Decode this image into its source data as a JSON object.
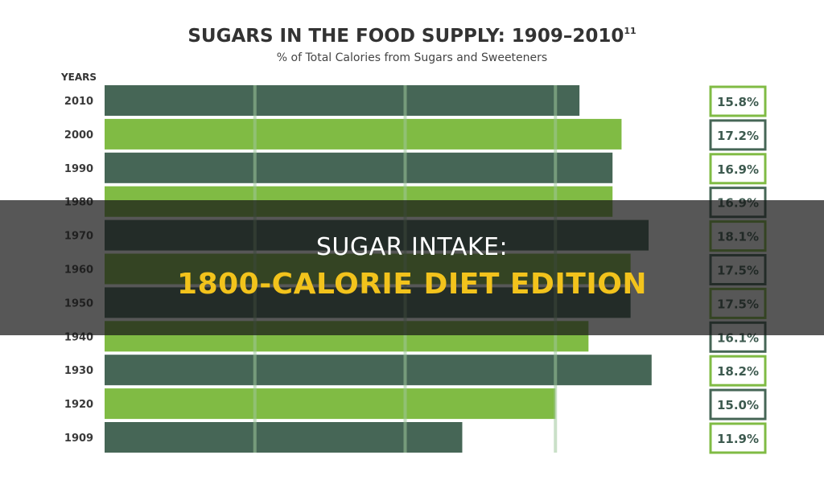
{
  "chart_data": {
    "type": "bar",
    "orientation": "horizontal",
    "title": "SUGARS IN THE FOOD SUPPLY: 1909–2010",
    "title_superscript": "11",
    "subtitle": "% of Total Calories from Sugars and Sweeteners",
    "ylabel": "YEARS",
    "categories": [
      "2010",
      "2000",
      "1990",
      "1980",
      "1970",
      "1960",
      "1950",
      "1940",
      "1930",
      "1920",
      "1909"
    ],
    "values": [
      15.8,
      17.2,
      16.9,
      16.9,
      18.1,
      17.5,
      17.5,
      16.1,
      18.2,
      15.0,
      11.9
    ],
    "value_labels": [
      "15.8%",
      "17.2%",
      "16.9%",
      "16.9%",
      "18.1%",
      "17.5%",
      "17.5%",
      "16.1%",
      "18.2%",
      "15.0%",
      "11.9%"
    ],
    "xlim": [
      0,
      20
    ],
    "gridlines_at": [
      5,
      10,
      15
    ],
    "colors": {
      "dark": "#466656",
      "light": "#80bb44",
      "grid": "#9ec79a"
    }
  },
  "headline": {
    "line1": "SUGAR INTAKE:",
    "line2": "1800-CALORIE DIET EDITION"
  }
}
